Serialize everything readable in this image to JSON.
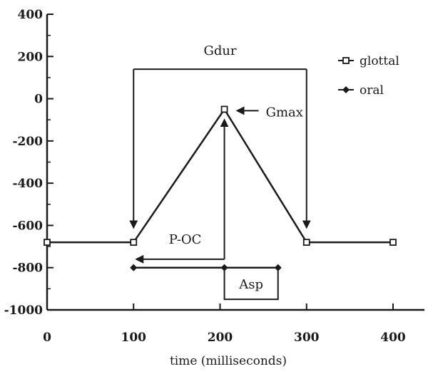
{
  "chart_data": {
    "type": "line",
    "title": "",
    "xlabel": "time (milliseconds)",
    "ylabel": "",
    "xlim": [
      0,
      400
    ],
    "ylim": [
      -1000,
      400
    ],
    "x_ticks": [
      0,
      100,
      200,
      300,
      400
    ],
    "y_ticks": [
      400,
      200,
      0,
      -200,
      -400,
      -600,
      -800,
      -1000
    ],
    "x_tick_labels": [
      "0",
      "100",
      "200",
      "300",
      "400"
    ],
    "y_tick_labels": [
      "400",
      "200",
      "0",
      "-200",
      "-400",
      "-600",
      "-800",
      "-1000"
    ],
    "grid": false,
    "legend_position": "top-right",
    "series": [
      {
        "name": "glottal",
        "marker": "open-square",
        "points": [
          {
            "x": 0,
            "y": -680
          },
          {
            "x": 100,
            "y": -680
          },
          {
            "x": 205,
            "y": -50
          },
          {
            "x": 300,
            "y": -680
          },
          {
            "x": 400,
            "y": -680
          }
        ]
      },
      {
        "name": "oral",
        "marker": "filled-diamond",
        "points": [
          {
            "x": 100,
            "y": -800
          },
          {
            "x": 205,
            "y": -800
          },
          {
            "x": 267,
            "y": -800
          }
        ]
      }
    ],
    "annotations": {
      "gdur": {
        "label": "Gdur",
        "x_start": 100,
        "x_end": 300,
        "y_bracket": 140,
        "arrow_tip_y": -610
      },
      "gmax": {
        "label": "Gmax",
        "x": 205,
        "y": -50
      },
      "poc": {
        "label": "P-OC",
        "x_start": 205,
        "x_end": 100,
        "y_horizontal": -760,
        "arrow_tip_y": -100
      },
      "asp": {
        "label": "Asp",
        "x_start": 205,
        "x_end": 267,
        "y_top": -800,
        "y_bottom": -950
      }
    }
  }
}
